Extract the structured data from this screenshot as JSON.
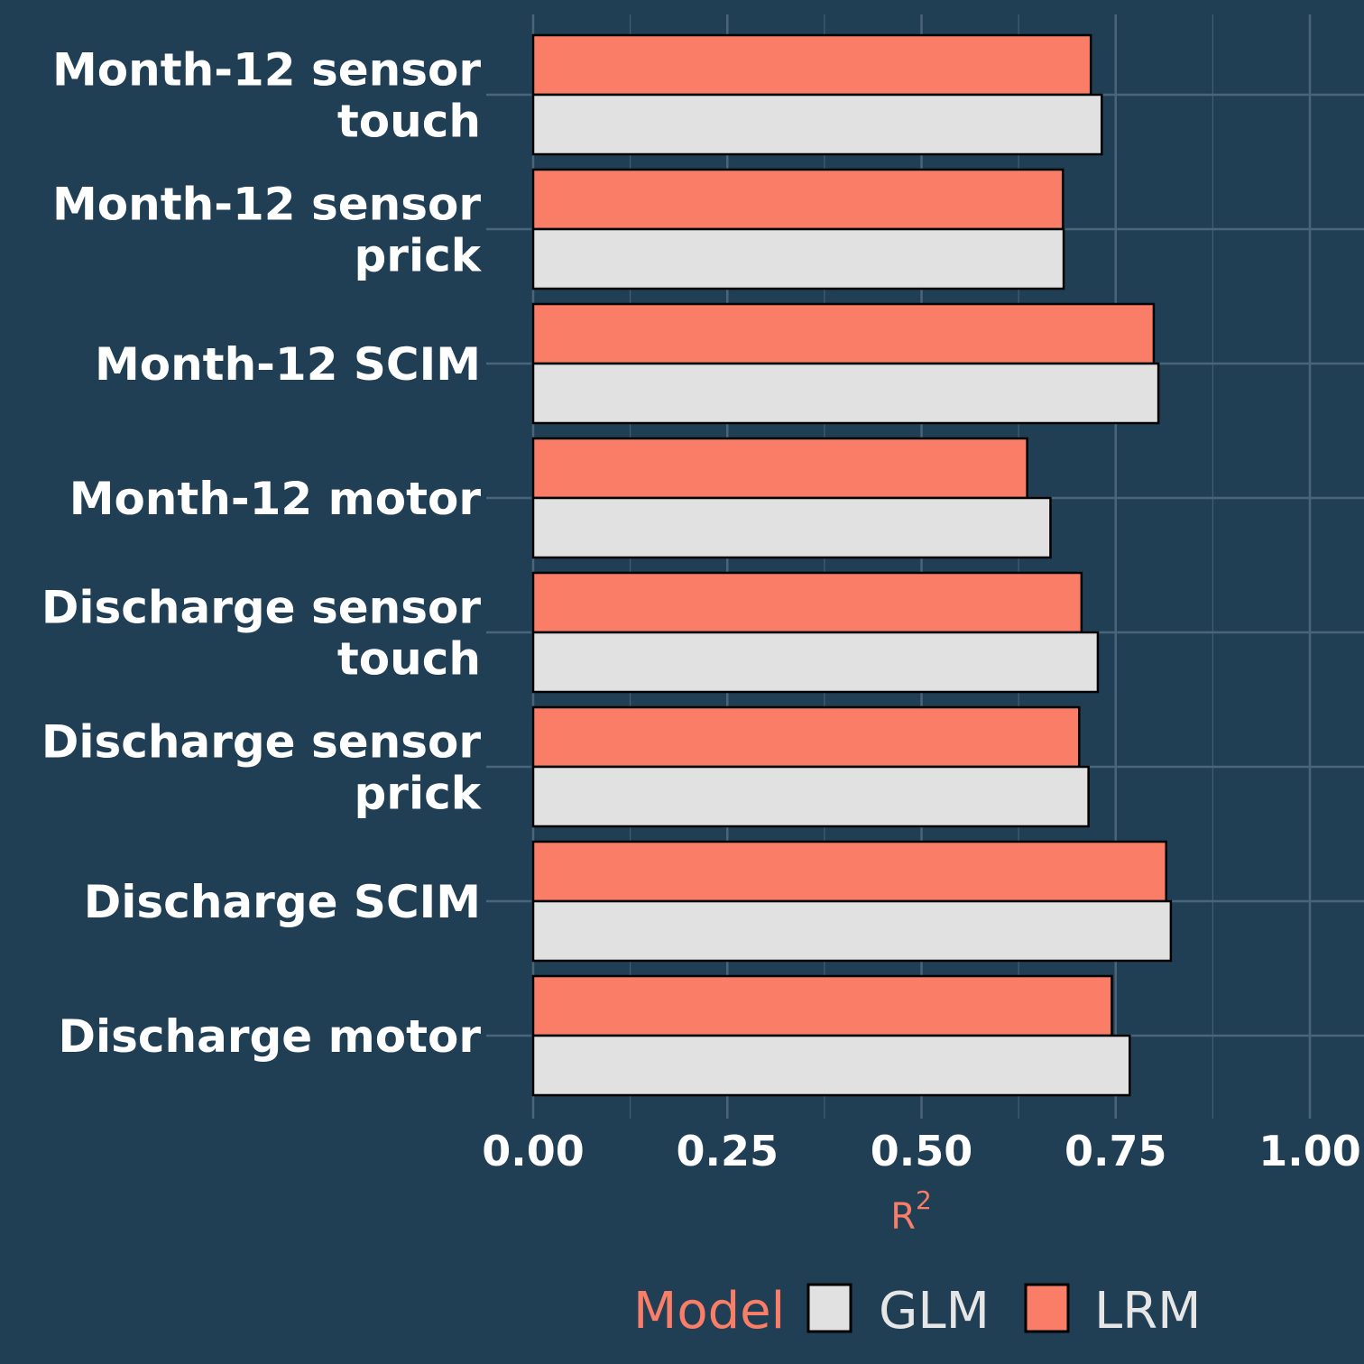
{
  "colors": {
    "background": "#203f55",
    "grid": "#4a6479",
    "accent": "#f97d67",
    "glm_fill": "#e1e1e1",
    "lrm_fill": "#f97d67",
    "bar_stroke": "#000000",
    "text": "#ffffff",
    "legend_text": "#e6e6e6"
  },
  "chart_data": {
    "type": "bar",
    "orientation": "horizontal",
    "categories": [
      [
        "Month-12 sensor",
        "touch"
      ],
      [
        "Month-12 sensor",
        "prick"
      ],
      [
        "Month-12 SCIM"
      ],
      [
        "Month-12 motor"
      ],
      [
        "Discharge sensor",
        "touch"
      ],
      [
        "Discharge sensor",
        "prick"
      ],
      [
        "Discharge SCIM"
      ],
      [
        "Discharge motor"
      ]
    ],
    "series": [
      {
        "name": "LRM",
        "color": "#f97d67",
        "values": [
          0.718,
          0.682,
          0.799,
          0.636,
          0.706,
          0.703,
          0.815,
          0.745
        ]
      },
      {
        "name": "GLM",
        "color": "#e1e1e1",
        "values": [
          0.732,
          0.683,
          0.805,
          0.666,
          0.727,
          0.715,
          0.821,
          0.768
        ]
      }
    ],
    "xlim": [
      0,
      1
    ],
    "xticks": [
      "0.00",
      "0.25",
      "0.50",
      "0.75",
      "1.00"
    ],
    "xtick_values": [
      0,
      0.25,
      0.5,
      0.75,
      1.0
    ],
    "xlabel": "R",
    "xlabel_superscript": "2",
    "ylabel": "",
    "grid": true,
    "legend": {
      "position": "bottom",
      "title": "Model",
      "entries": [
        {
          "name": "GLM",
          "color": "#e1e1e1"
        },
        {
          "name": "LRM",
          "color": "#f97d67"
        }
      ]
    }
  }
}
